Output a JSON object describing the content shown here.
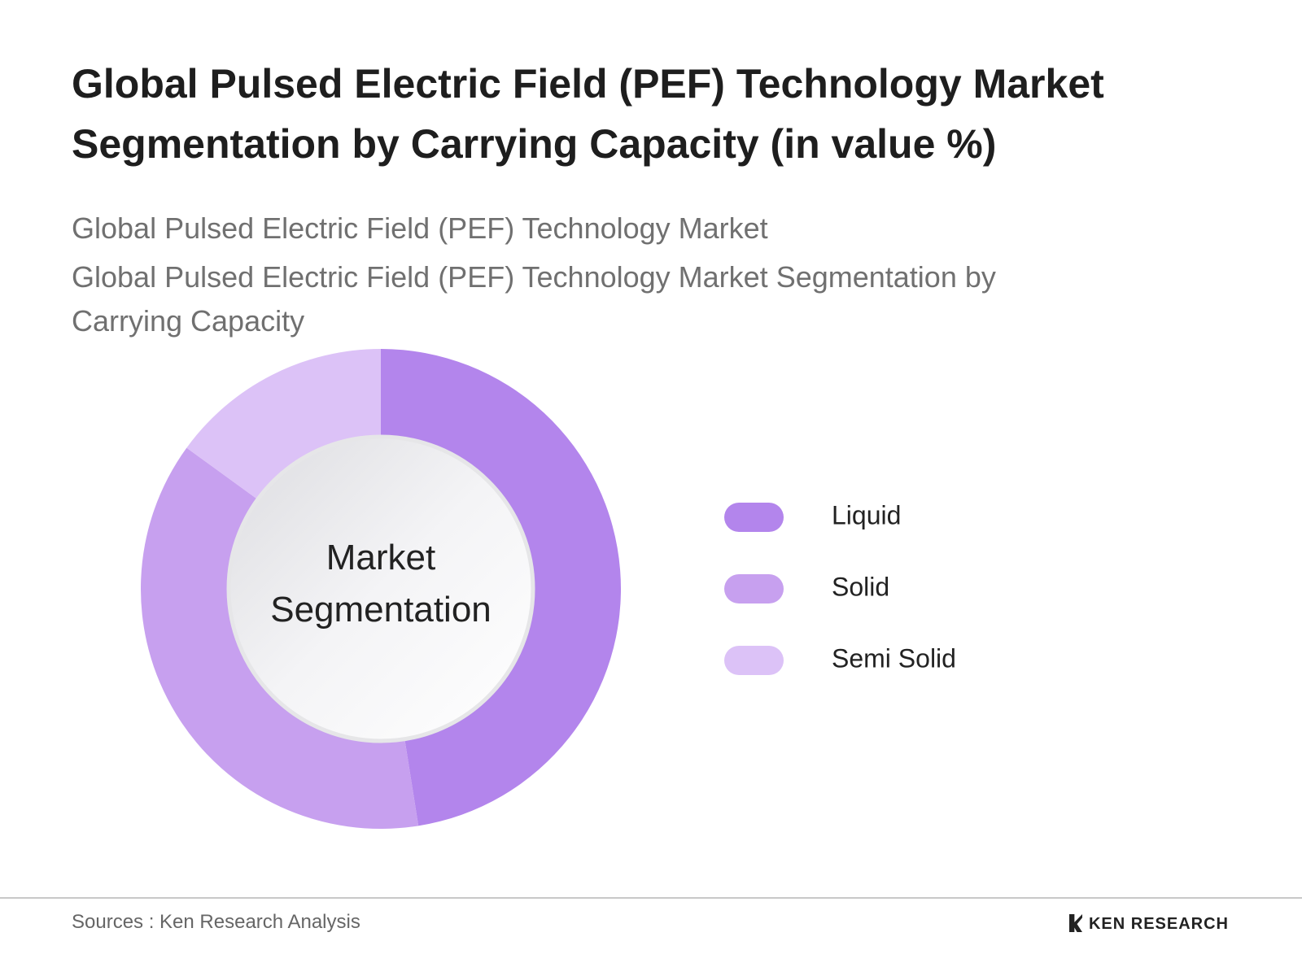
{
  "chart_data": {
    "type": "donut",
    "title": "Global Pulsed Electric Field (PEF) Technology Market Segmentation by Carrying Capacity (in value %)",
    "subtitles": [
      "Global Pulsed Electric Field (PEF) Technology Market",
      "Global Pulsed Electric Field (PEF) Technology Market Segmentation by Carrying Capacity"
    ],
    "center_label": "Market Segmentation",
    "categories": [
      "Liquid",
      "Solid",
      "Semi Solid"
    ],
    "values": [
      47.5,
      37.5,
      15
    ],
    "colors": [
      "#b385ec",
      "#c7a0ef",
      "#dcc2f7"
    ],
    "legend": "right",
    "source": "Sources : Ken Research Analysis",
    "brand": "KEN RESEARCH"
  }
}
